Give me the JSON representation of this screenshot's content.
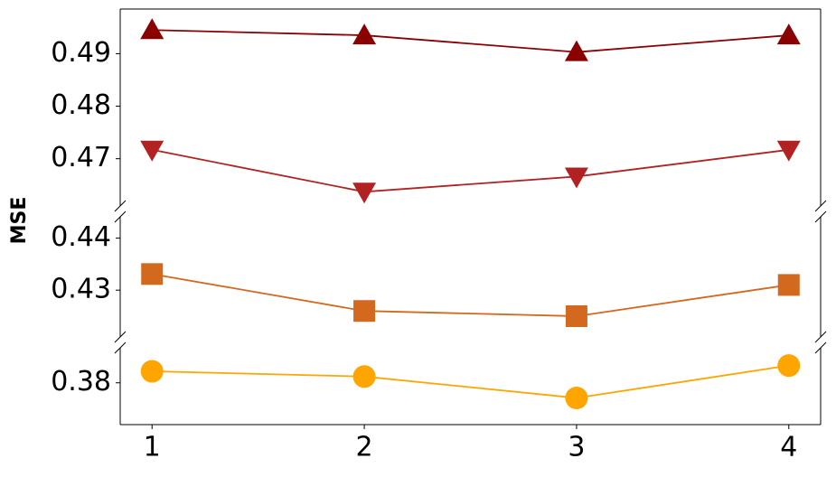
{
  "chart_data": {
    "type": "line",
    "ylabel": "MSE",
    "x": [
      1,
      2,
      3,
      4
    ],
    "xlim": [
      0.85,
      4.15
    ],
    "xticks": [
      1,
      2,
      3,
      4
    ],
    "panels": [
      {
        "ylim": [
          0.461,
          0.4985
        ],
        "yticks": [
          0.47,
          0.48,
          0.49
        ],
        "series": [
          {
            "color": "#8b0000",
            "marker": "^",
            "values": [
              0.4945,
              0.4935,
              0.4903,
              0.4935
            ]
          },
          {
            "color": "#b22222",
            "marker": "v",
            "values": [
              0.4717,
              0.4637,
              0.4666,
              0.4717
            ]
          }
        ]
      },
      {
        "ylim": [
          0.421,
          0.4441
        ],
        "yticks": [
          0.43,
          0.44
        ],
        "series": [
          {
            "color": "#d2691e",
            "marker": "s",
            "values": [
              0.4331,
              0.426,
              0.425,
              0.431
            ]
          }
        ]
      },
      {
        "ylim": [
          0.372,
          0.3867
        ],
        "yticks": [
          0.38
        ],
        "series": [
          {
            "color": "#ffa500",
            "marker": "o",
            "values": [
              0.3822,
              0.3812,
              0.3771,
              0.3833
            ]
          }
        ]
      }
    ]
  }
}
